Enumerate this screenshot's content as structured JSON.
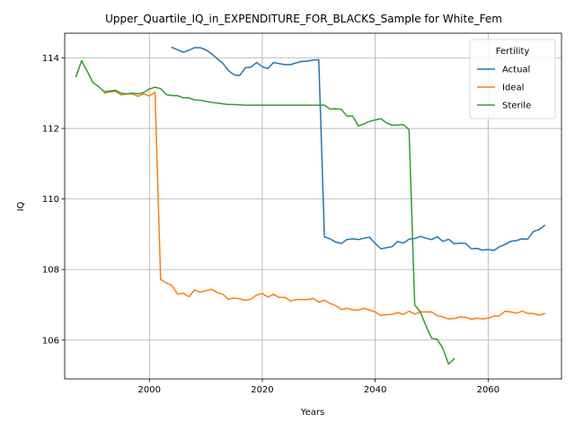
{
  "chart_data": {
    "type": "line",
    "title": "Upper_Quartile_IQ_in_EXPENDITURE_FOR_BLACKS_Sample for White_Fem",
    "xlabel": "Years",
    "ylabel": "IQ",
    "xlim": [
      1985,
      2073
    ],
    "ylim": [
      104.9,
      114.7
    ],
    "xticks": [
      2000,
      2020,
      2040,
      2060
    ],
    "yticks": [
      106,
      108,
      110,
      112,
      114
    ],
    "grid": true,
    "legend": {
      "title": "Fertility",
      "position": "upper right"
    },
    "series": [
      {
        "name": "Actual",
        "color": "#1f77b4",
        "x": [
          2004,
          2005,
          2006,
          2007,
          2008,
          2009,
          2010,
          2011,
          2012,
          2013,
          2014,
          2015,
          2016,
          2017,
          2018,
          2019,
          2020,
          2021,
          2022,
          2023,
          2024,
          2025,
          2026,
          2027,
          2028,
          2029,
          2030,
          2031,
          2032,
          2033,
          2034,
          2035,
          2036,
          2037,
          2038,
          2039,
          2040,
          2041,
          2042,
          2043,
          2044,
          2045,
          2046,
          2047,
          2048,
          2049,
          2050,
          2051,
          2052,
          2053,
          2054,
          2055,
          2056,
          2057,
          2058,
          2059,
          2060,
          2061,
          2062,
          2063,
          2064,
          2065,
          2066,
          2067,
          2068,
          2069,
          2070
        ],
        "y": [
          114.3,
          114.23,
          114.16,
          114.22,
          114.29,
          114.29,
          114.23,
          114.12,
          113.98,
          113.85,
          113.64,
          113.52,
          113.5,
          113.72,
          113.74,
          113.87,
          113.75,
          113.7,
          113.87,
          113.84,
          113.81,
          113.81,
          113.86,
          113.9,
          113.91,
          113.94,
          113.95,
          108.93,
          108.87,
          108.78,
          108.74,
          108.85,
          108.87,
          108.85,
          108.89,
          108.92,
          108.74,
          108.59,
          108.62,
          108.65,
          108.8,
          108.75,
          108.86,
          108.88,
          108.94,
          108.89,
          108.85,
          108.93,
          108.8,
          108.86,
          108.73,
          108.75,
          108.74,
          108.59,
          108.6,
          108.55,
          108.57,
          108.54,
          108.65,
          108.71,
          108.8,
          108.82,
          108.87,
          108.86,
          109.08,
          109.13,
          109.25
        ]
      },
      {
        "name": "Ideal",
        "color": "#ff7f0e",
        "x": [
          1992,
          1993,
          1994,
          1995,
          1996,
          1997,
          1998,
          1999,
          2000,
          2001,
          2002,
          2003,
          2004,
          2005,
          2006,
          2007,
          2008,
          2009,
          2010,
          2011,
          2012,
          2013,
          2014,
          2015,
          2016,
          2017,
          2018,
          2019,
          2020,
          2021,
          2022,
          2023,
          2024,
          2025,
          2026,
          2027,
          2028,
          2029,
          2030,
          2031,
          2032,
          2033,
          2034,
          2035,
          2036,
          2037,
          2038,
          2039,
          2040,
          2041,
          2042,
          2043,
          2044,
          2045,
          2046,
          2047,
          2048,
          2049,
          2050,
          2051,
          2052,
          2053,
          2054,
          2055,
          2056,
          2057,
          2058,
          2059,
          2060,
          2061,
          2062,
          2063,
          2064,
          2065,
          2066,
          2067,
          2068,
          2069,
          2070
        ],
        "y": [
          113.0,
          113.04,
          113.05,
          112.95,
          112.98,
          112.98,
          112.91,
          112.98,
          112.92,
          113.03,
          107.72,
          107.62,
          107.55,
          107.3,
          107.33,
          107.23,
          107.42,
          107.36,
          107.4,
          107.44,
          107.35,
          107.3,
          107.16,
          107.19,
          107.17,
          107.13,
          107.16,
          107.28,
          107.32,
          107.22,
          107.3,
          107.21,
          107.21,
          107.11,
          107.15,
          107.15,
          107.15,
          107.18,
          107.08,
          107.13,
          107.04,
          106.98,
          106.87,
          106.9,
          106.86,
          106.85,
          106.9,
          106.85,
          106.8,
          106.7,
          106.72,
          106.73,
          106.78,
          106.73,
          106.82,
          106.74,
          106.8,
          106.8,
          106.8,
          106.69,
          106.66,
          106.6,
          106.61,
          106.66,
          106.65,
          106.59,
          106.62,
          106.6,
          106.62,
          106.68,
          106.69,
          106.82,
          106.8,
          106.76,
          106.82,
          106.76,
          106.75,
          106.71,
          106.75
        ]
      },
      {
        "name": "Sterile",
        "color": "#2ca02c",
        "x": [
          1987,
          1988,
          1989,
          1990,
          1991,
          1992,
          1993,
          1994,
          1995,
          1996,
          1997,
          1998,
          1999,
          2000,
          2001,
          2002,
          2003,
          2004,
          2005,
          2006,
          2007,
          2008,
          2009,
          2010,
          2011,
          2012,
          2013,
          2014,
          2015,
          2016,
          2017,
          2018,
          2019,
          2020,
          2021,
          2022,
          2023,
          2024,
          2025,
          2026,
          2027,
          2028,
          2029,
          2030,
          2031,
          2032,
          2033,
          2034,
          2035,
          2036,
          2037,
          2038,
          2039,
          2040,
          2041,
          2042,
          2043,
          2044,
          2045,
          2046,
          2047,
          2048,
          2049,
          2050,
          2051,
          2052,
          2053,
          2054
        ],
        "y": [
          113.47,
          113.92,
          113.62,
          113.3,
          113.19,
          113.04,
          113.06,
          113.08,
          113.0,
          112.98,
          113.0,
          112.98,
          113.02,
          113.12,
          113.17,
          113.13,
          112.96,
          112.93,
          112.93,
          112.87,
          112.87,
          112.81,
          112.8,
          112.77,
          112.74,
          112.72,
          112.7,
          112.68,
          112.68,
          112.67,
          112.66,
          112.66,
          112.66,
          112.66,
          112.66,
          112.66,
          112.66,
          112.66,
          112.66,
          112.66,
          112.66,
          112.66,
          112.66,
          112.66,
          112.66,
          112.55,
          112.56,
          112.54,
          112.35,
          112.35,
          112.07,
          112.13,
          112.2,
          112.24,
          112.28,
          112.16,
          112.09,
          112.1,
          112.11,
          111.97,
          107.0,
          106.8,
          106.4,
          106.05,
          106.02,
          105.76,
          105.32,
          105.47
        ]
      }
    ]
  }
}
